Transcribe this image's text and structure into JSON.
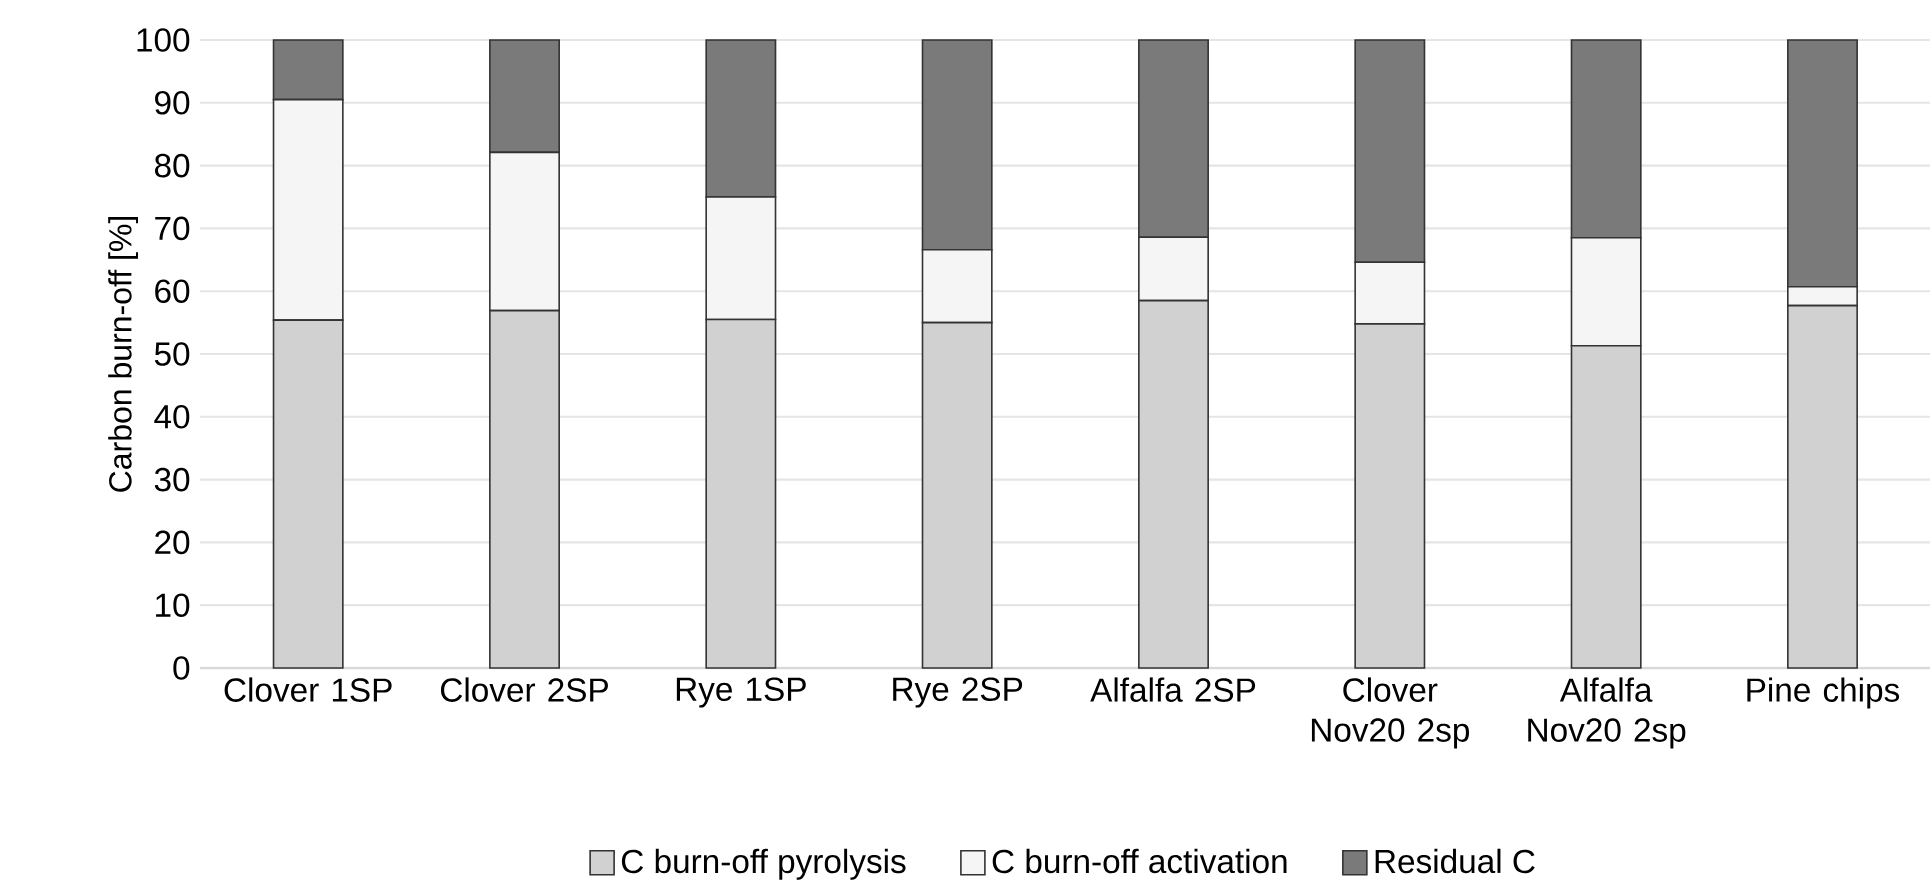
{
  "chart_data": {
    "type": "bar",
    "stacked": true,
    "ylabel": "Carbon burn-off [%]",
    "categories": [
      "Clover 1SP",
      "Clover 2SP",
      "Rye 1SP",
      "Rye 2SP",
      "Alfalfa 2SP",
      "Clover Nov20 2sp",
      "Alfalfa Nov20 2sp",
      "Pine chips"
    ],
    "series": [
      {
        "name": "C burn-off pyrolysis",
        "color": "#d0d1d0",
        "values": [
          55.4,
          56.9,
          55.5,
          55.0,
          58.5,
          54.8,
          51.3,
          57.7
        ]
      },
      {
        "name": "C burn-off activation",
        "color": "#f4f5f4",
        "values": [
          35.1,
          25.2,
          19.5,
          11.6,
          10.1,
          9.8,
          17.2,
          3.0
        ]
      },
      {
        "name": "Residual C",
        "color": "#7a7a7a",
        "values": [
          9.5,
          17.9,
          25.0,
          33.4,
          31.4,
          35.4,
          31.5,
          39.3
        ]
      }
    ],
    "ylim": [
      0,
      100
    ],
    "yticks": [
      0,
      10,
      20,
      30,
      40,
      50,
      60,
      70,
      80,
      90,
      100
    ],
    "grid": "y",
    "legend": "bottom"
  }
}
